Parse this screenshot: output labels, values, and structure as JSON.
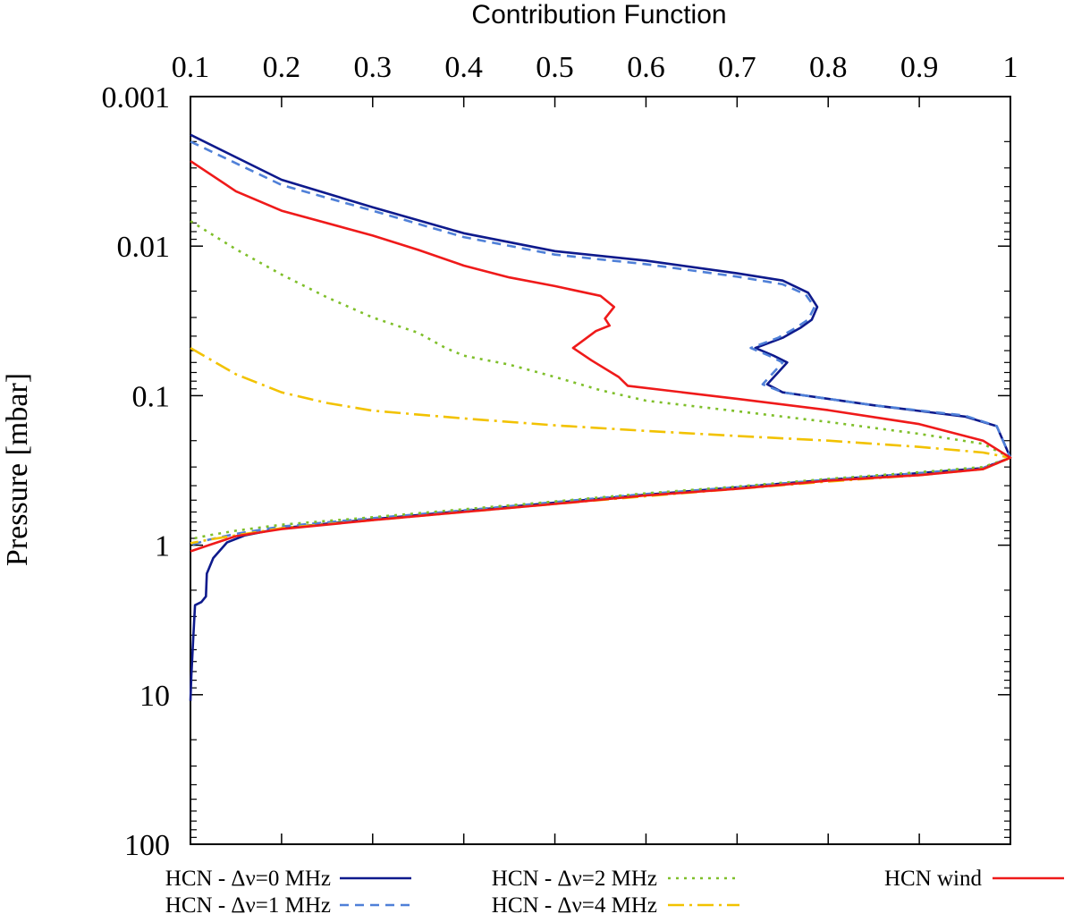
{
  "chart_data": {
    "type": "line",
    "title": "",
    "xlabel": "Contribution Function",
    "xaxis_position": "top",
    "ylabel": "Pressure [mbar]",
    "xlim": [
      0.1,
      1
    ],
    "ylim": [
      0.001,
      100
    ],
    "yscale": "log",
    "yinverted": true,
    "grid": false,
    "legend_position": "bottom",
    "x_ticks": [
      0.1,
      0.2,
      0.3,
      0.4,
      0.5,
      0.6,
      0.7,
      0.8,
      0.9,
      1
    ],
    "x_tick_labels": [
      "0.1",
      "0.2",
      "0.3",
      "0.4",
      "0.5",
      "0.6",
      "0.7",
      "0.8",
      "0.9",
      "1"
    ],
    "y_ticks": [
      0.001,
      0.01,
      0.1,
      1,
      10,
      100
    ],
    "y_tick_labels": [
      "0.001",
      "0.01",
      "0.1",
      "1",
      "10",
      "100"
    ],
    "series": [
      {
        "name": "HCN - Δν=0 MHz",
        "color": "#0e1a8c",
        "dash": "solid",
        "points": [
          [
            0.1,
            0.0018
          ],
          [
            0.2,
            0.0036
          ],
          [
            0.3,
            0.0055
          ],
          [
            0.4,
            0.0082
          ],
          [
            0.5,
            0.0108
          ],
          [
            0.6,
            0.0125
          ],
          [
            0.7,
            0.0152
          ],
          [
            0.75,
            0.017
          ],
          [
            0.778,
            0.0205
          ],
          [
            0.788,
            0.0255
          ],
          [
            0.782,
            0.031
          ],
          [
            0.77,
            0.035
          ],
          [
            0.75,
            0.041
          ],
          [
            0.72,
            0.048
          ],
          [
            0.74,
            0.054
          ],
          [
            0.755,
            0.06
          ],
          [
            0.745,
            0.07
          ],
          [
            0.733,
            0.084
          ],
          [
            0.75,
            0.095
          ],
          [
            0.85,
            0.116
          ],
          [
            0.95,
            0.138
          ],
          [
            0.985,
            0.16
          ],
          [
            1.0,
            0.26
          ],
          [
            0.97,
            0.305
          ],
          [
            0.9,
            0.33
          ],
          [
            0.8,
            0.365
          ],
          [
            0.7,
            0.41
          ],
          [
            0.6,
            0.46
          ],
          [
            0.5,
            0.52
          ],
          [
            0.4,
            0.59
          ],
          [
            0.3,
            0.67
          ],
          [
            0.2,
            0.77
          ],
          [
            0.16,
            0.86
          ],
          [
            0.14,
            0.96
          ],
          [
            0.125,
            1.22
          ],
          [
            0.118,
            1.55
          ],
          [
            0.117,
            2.2
          ],
          [
            0.112,
            2.4
          ],
          [
            0.105,
            2.52
          ],
          [
            0.103,
            4.2
          ],
          [
            0.101,
            7.5
          ],
          [
            0.1,
            11
          ]
        ]
      },
      {
        "name": "HCN - Δν=1 MHz",
        "color": "#4f80d8",
        "dash": "dash",
        "points": [
          [
            0.1,
            0.002
          ],
          [
            0.2,
            0.0039
          ],
          [
            0.3,
            0.0058
          ],
          [
            0.4,
            0.0087
          ],
          [
            0.5,
            0.0114
          ],
          [
            0.6,
            0.0132
          ],
          [
            0.7,
            0.016
          ],
          [
            0.75,
            0.018
          ],
          [
            0.775,
            0.021
          ],
          [
            0.785,
            0.0255
          ],
          [
            0.778,
            0.031
          ],
          [
            0.765,
            0.035
          ],
          [
            0.745,
            0.041
          ],
          [
            0.715,
            0.048
          ],
          [
            0.735,
            0.054
          ],
          [
            0.75,
            0.06
          ],
          [
            0.74,
            0.07
          ],
          [
            0.728,
            0.084
          ],
          [
            0.75,
            0.095
          ],
          [
            0.85,
            0.116
          ],
          [
            0.95,
            0.136
          ],
          [
            0.985,
            0.16
          ],
          [
            1.0,
            0.26
          ],
          [
            0.97,
            0.305
          ],
          [
            0.9,
            0.33
          ],
          [
            0.8,
            0.365
          ],
          [
            0.7,
            0.41
          ],
          [
            0.6,
            0.455
          ],
          [
            0.5,
            0.515
          ],
          [
            0.4,
            0.585
          ],
          [
            0.3,
            0.66
          ],
          [
            0.2,
            0.75
          ],
          [
            0.15,
            0.84
          ],
          [
            0.12,
            0.92
          ],
          [
            0.1,
            1.0
          ]
        ]
      },
      {
        "name": "HCN - Δν=2 MHz",
        "color": "#7fbf2a",
        "dash": "dot",
        "points": [
          [
            0.1,
            0.0068
          ],
          [
            0.15,
            0.0105
          ],
          [
            0.2,
            0.0155
          ],
          [
            0.25,
            0.022
          ],
          [
            0.3,
            0.03
          ],
          [
            0.35,
            0.038
          ],
          [
            0.38,
            0.048
          ],
          [
            0.4,
            0.054
          ],
          [
            0.45,
            0.062
          ],
          [
            0.5,
            0.075
          ],
          [
            0.55,
            0.092
          ],
          [
            0.6,
            0.108
          ],
          [
            0.7,
            0.127
          ],
          [
            0.8,
            0.15
          ],
          [
            0.9,
            0.18
          ],
          [
            0.97,
            0.21
          ],
          [
            1.0,
            0.26
          ],
          [
            0.97,
            0.3
          ],
          [
            0.9,
            0.325
          ],
          [
            0.8,
            0.36
          ],
          [
            0.7,
            0.405
          ],
          [
            0.6,
            0.45
          ],
          [
            0.5,
            0.51
          ],
          [
            0.4,
            0.575
          ],
          [
            0.3,
            0.65
          ],
          [
            0.2,
            0.73
          ],
          [
            0.15,
            0.8
          ],
          [
            0.12,
            0.86
          ],
          [
            0.1,
            0.91
          ]
        ]
      },
      {
        "name": "HCN - Δν=4 MHz",
        "color": "#f2c200",
        "dash": "dashdot",
        "points": [
          [
            0.1,
            0.048
          ],
          [
            0.15,
            0.072
          ],
          [
            0.2,
            0.095
          ],
          [
            0.25,
            0.112
          ],
          [
            0.3,
            0.126
          ],
          [
            0.4,
            0.142
          ],
          [
            0.5,
            0.158
          ],
          [
            0.6,
            0.172
          ],
          [
            0.7,
            0.186
          ],
          [
            0.8,
            0.2
          ],
          [
            0.9,
            0.22
          ],
          [
            0.97,
            0.24
          ],
          [
            1.0,
            0.26
          ],
          [
            0.97,
            0.31
          ],
          [
            0.9,
            0.34
          ],
          [
            0.8,
            0.375
          ],
          [
            0.7,
            0.42
          ],
          [
            0.6,
            0.47
          ],
          [
            0.5,
            0.53
          ],
          [
            0.4,
            0.6
          ],
          [
            0.3,
            0.68
          ],
          [
            0.2,
            0.77
          ],
          [
            0.15,
            0.86
          ],
          [
            0.12,
            0.92
          ],
          [
            0.1,
            0.97
          ]
        ]
      },
      {
        "name": "HCN wind",
        "color": "#ef1a1a",
        "dash": "solid",
        "points": [
          [
            0.1,
            0.0027
          ],
          [
            0.15,
            0.0043
          ],
          [
            0.2,
            0.0058
          ],
          [
            0.3,
            0.0085
          ],
          [
            0.35,
            0.0106
          ],
          [
            0.4,
            0.0135
          ],
          [
            0.45,
            0.0162
          ],
          [
            0.5,
            0.0185
          ],
          [
            0.55,
            0.0215
          ],
          [
            0.565,
            0.0255
          ],
          [
            0.555,
            0.0305
          ],
          [
            0.56,
            0.034
          ],
          [
            0.545,
            0.037
          ],
          [
            0.52,
            0.048
          ],
          [
            0.54,
            0.058
          ],
          [
            0.57,
            0.075
          ],
          [
            0.58,
            0.086
          ],
          [
            0.7,
            0.105
          ],
          [
            0.8,
            0.125
          ],
          [
            0.9,
            0.155
          ],
          [
            0.97,
            0.2
          ],
          [
            1.0,
            0.26
          ],
          [
            0.97,
            0.31
          ],
          [
            0.9,
            0.34
          ],
          [
            0.8,
            0.37
          ],
          [
            0.7,
            0.42
          ],
          [
            0.6,
            0.465
          ],
          [
            0.5,
            0.53
          ],
          [
            0.4,
            0.6
          ],
          [
            0.3,
            0.68
          ],
          [
            0.2,
            0.78
          ],
          [
            0.15,
            0.87
          ],
          [
            0.12,
            1.0
          ],
          [
            0.1,
            1.1
          ]
        ]
      }
    ]
  }
}
